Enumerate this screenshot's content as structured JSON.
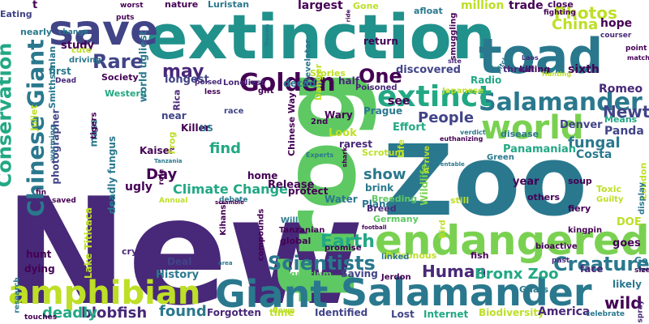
{
  "word_cloud": {
    "words": [
      {
        "text": "New",
        "color": "#482878"
      },
      {
        "text": "frog",
        "color": "#5ec962"
      },
      {
        "text": "Zoo",
        "color": "#2a788e"
      },
      {
        "text": "extinction",
        "color": "#21918c"
      },
      {
        "text": "toad",
        "color": "#2a788e"
      },
      {
        "text": "save",
        "color": "#414487"
      },
      {
        "text": "endangered",
        "color": "#7ad151"
      },
      {
        "text": "Giant",
        "color": "#2a788e"
      },
      {
        "text": "Salamander",
        "color": "#2a788e"
      },
      {
        "text": "Salamander",
        "color": "#2a788e"
      },
      {
        "text": "world",
        "color": "#7ad151"
      },
      {
        "text": "amphibian",
        "color": "#bddf26"
      },
      {
        "text": "extinct",
        "color": "#22a884"
      },
      {
        "text": "Chinese Giant",
        "color": "#2a788e"
      },
      {
        "text": "Conservation",
        "color": "#22a884"
      },
      {
        "text": "Golden",
        "color": "#440154"
      },
      {
        "text": "Scientists",
        "color": "#2a788e"
      },
      {
        "text": "Earth",
        "color": "#22a884"
      },
      {
        "text": "Rare",
        "color": "#414487"
      },
      {
        "text": "Creature",
        "color": "#2a788e"
      },
      {
        "text": "may",
        "color": "#482878"
      },
      {
        "text": "One",
        "color": "#440154"
      },
      {
        "text": "People",
        "color": "#414487"
      },
      {
        "text": "Newt",
        "color": "#414487"
      },
      {
        "text": "Photos",
        "color": "#bddf26"
      },
      {
        "text": "China",
        "color": "#bddf26"
      },
      {
        "text": "Human",
        "color": "#482878"
      },
      {
        "text": "Bronx Zoo",
        "color": "#22a884"
      },
      {
        "text": "wild",
        "color": "#440154"
      },
      {
        "text": "blobfish",
        "color": "#482878"
      },
      {
        "text": "found",
        "color": "#2a788e"
      },
      {
        "text": "deadly",
        "color": "#22a884"
      },
      {
        "text": "Climate Change",
        "color": "#22a884"
      },
      {
        "text": "Day",
        "color": "#440154"
      },
      {
        "text": "find",
        "color": "#22a884"
      },
      {
        "text": "show",
        "color": "#2a788e"
      },
      {
        "text": "Planet",
        "color": "#2a788e"
      },
      {
        "text": "Wildlife",
        "color": "#7ad151"
      },
      {
        "text": "fungal",
        "color": "#2a788e"
      },
      {
        "text": "Panamanian",
        "color": "#22a884"
      },
      {
        "text": "Costa",
        "color": "#2a788e"
      },
      {
        "text": "Panda",
        "color": "#414487"
      },
      {
        "text": "Denver",
        "color": "#414487"
      },
      {
        "text": "Romeo",
        "color": "#482878"
      },
      {
        "text": "sixth",
        "color": "#440154"
      },
      {
        "text": "hope",
        "color": "#440154"
      },
      {
        "text": "largest",
        "color": "#440154"
      },
      {
        "text": "million",
        "color": "#bddf26"
      },
      {
        "text": "trade",
        "color": "#440154"
      },
      {
        "text": "discovered",
        "color": "#414487"
      },
      {
        "text": "see",
        "color": "#440154"
      },
      {
        "text": "Look",
        "color": "#bddf26"
      },
      {
        "text": "Effort",
        "color": "#22a884"
      },
      {
        "text": "rarest",
        "color": "#482878"
      },
      {
        "text": "Killer",
        "color": "#440154"
      },
      {
        "text": "Kaiser",
        "color": "#440154"
      },
      {
        "text": "ugly",
        "color": "#440154"
      },
      {
        "text": "Release",
        "color": "#440154"
      },
      {
        "text": "protect",
        "color": "#440154"
      },
      {
        "text": "home",
        "color": "#440154"
      },
      {
        "text": "Water",
        "color": "#2a788e"
      },
      {
        "text": "brink",
        "color": "#2a788e"
      },
      {
        "text": "Breed",
        "color": "#482878"
      },
      {
        "text": "Breeding",
        "color": "#5ec962"
      },
      {
        "text": "Germany",
        "color": "#5ec962"
      },
      {
        "text": "global",
        "color": "#440154"
      },
      {
        "text": "Poisonous",
        "color": "#bddf26"
      },
      {
        "text": "fish",
        "color": "#440154"
      },
      {
        "text": "Saving",
        "color": "#414487"
      },
      {
        "text": "Aquarium",
        "color": "#5ec962"
      },
      {
        "text": "History",
        "color": "#2a788e"
      },
      {
        "text": "Deal",
        "color": "#414487"
      },
      {
        "text": "hunt",
        "color": "#440154"
      },
      {
        "text": "dying",
        "color": "#440154"
      },
      {
        "text": "Lake Titicaca",
        "color": "#bddf26"
      },
      {
        "text": "Forgotten",
        "color": "#482878"
      },
      {
        "text": "time",
        "color": "#bddf26"
      },
      {
        "text": "Identified",
        "color": "#414487"
      },
      {
        "text": "Lost",
        "color": "#414487"
      },
      {
        "text": "Internet",
        "color": "#22a884"
      },
      {
        "text": "Biodiversity",
        "color": "#bddf26"
      },
      {
        "text": "America",
        "color": "#482878"
      },
      {
        "text": "Eating",
        "color": "#414487"
      },
      {
        "text": "nearly",
        "color": "#2a788e"
      },
      {
        "text": "study",
        "color": "#440154"
      },
      {
        "text": "first",
        "color": "#2a788e"
      },
      {
        "text": "Society",
        "color": "#440154"
      },
      {
        "text": "longest",
        "color": "#414487"
      },
      {
        "text": "decade",
        "color": "#2a788e"
      },
      {
        "text": "half",
        "color": "#482878"
      },
      {
        "text": "Stories",
        "color": "#bddf26"
      },
      {
        "text": "Radio",
        "color": "#22a884"
      },
      {
        "text": "killing",
        "color": "#440154"
      },
      {
        "text": "threat",
        "color": "#482878"
      },
      {
        "text": "Means",
        "color": "#22a884"
      },
      {
        "text": "return",
        "color": "#440154"
      },
      {
        "text": "nature",
        "color": "#440154"
      },
      {
        "text": "Luristan",
        "color": "#2a788e"
      },
      {
        "text": "Gone",
        "color": "#bddf26"
      },
      {
        "text": "afloat",
        "color": "#2a788e"
      },
      {
        "text": "close",
        "color": "#440154"
      },
      {
        "text": "Western",
        "color": "#22a884"
      },
      {
        "text": "world ugliest",
        "color": "#2a788e"
      },
      {
        "text": "Loneliest",
        "color": "#482878"
      },
      {
        "text": "Danger",
        "color": "#bddf26"
      },
      {
        "text": "Revelator",
        "color": "#2a788e"
      },
      {
        "text": "Wary",
        "color": "#440154"
      },
      {
        "text": "Chinese Way",
        "color": "#440154"
      },
      {
        "text": "2nd",
        "color": "#440154"
      },
      {
        "text": "race",
        "color": "#414487"
      },
      {
        "text": "near",
        "color": "#414487"
      },
      {
        "text": "Rica",
        "color": "#482878"
      },
      {
        "text": "US",
        "color": "#2a788e"
      },
      {
        "text": "Frog",
        "color": "#bddf26"
      },
      {
        "text": "photographer",
        "color": "#414487"
      },
      {
        "text": "Smithsonian",
        "color": "#2a788e"
      },
      {
        "text": "Juliet",
        "color": "#bddf26"
      },
      {
        "text": "mass",
        "color": "#2a788e"
      },
      {
        "text": "deadly fungus",
        "color": "#2a788e"
      },
      {
        "text": "cute",
        "color": "#bddf26"
      },
      {
        "text": "driving",
        "color": "#2a788e"
      },
      {
        "text": "tigers",
        "color": "#440154"
      },
      {
        "text": "Prague",
        "color": "#2a788e"
      },
      {
        "text": "Scrotum",
        "color": "#bddf26"
      },
      {
        "text": "Toxic",
        "color": "#bddf26"
      },
      {
        "text": "Guilty",
        "color": "#bddf26"
      },
      {
        "text": "DOE",
        "color": "#bddf26"
      },
      {
        "text": "goes",
        "color": "#440154"
      },
      {
        "text": "face",
        "color": "#482878"
      },
      {
        "text": "likely",
        "color": "#2a788e"
      },
      {
        "text": "Ghats",
        "color": "#2a788e"
      },
      {
        "text": "Japanese",
        "color": "#bddf26"
      },
      {
        "text": "Poisoned",
        "color": "#482878"
      },
      {
        "text": "smuggling",
        "color": "#440154"
      },
      {
        "text": "disease",
        "color": "#2a788e"
      },
      {
        "text": "fiery",
        "color": "#440154"
      },
      {
        "text": "others",
        "color": "#440154"
      },
      {
        "text": "still",
        "color": "#bddf26"
      },
      {
        "text": "year",
        "color": "#440154"
      },
      {
        "text": "soup",
        "color": "#440154"
      },
      {
        "text": "London",
        "color": "#bddf26"
      },
      {
        "text": "display",
        "color": "#2a788e"
      },
      {
        "text": "kingpin",
        "color": "#440154"
      },
      {
        "text": "bioactive",
        "color": "#440154"
      },
      {
        "text": "Green",
        "color": "#2a788e"
      },
      {
        "text": "Bird",
        "color": "#bddf26"
      },
      {
        "text": "Life",
        "color": "#bddf26"
      },
      {
        "text": "Arrive",
        "color": "#bddf26"
      },
      {
        "text": "Tanzanian",
        "color": "#440154"
      },
      {
        "text": "compounds",
        "color": "#440154"
      },
      {
        "text": "Will",
        "color": "#2a788e"
      },
      {
        "text": "promise",
        "color": "#440154"
      },
      {
        "text": "linked",
        "color": "#2a788e"
      },
      {
        "text": "Jerdon",
        "color": "#440154"
      },
      {
        "text": "cryptic",
        "color": "#482878"
      },
      {
        "text": "Kihansi",
        "color": "#440154"
      },
      {
        "text": "debate",
        "color": "#2a788e"
      },
      {
        "text": "gift",
        "color": "#440154"
      },
      {
        "text": "saved",
        "color": "#440154"
      },
      {
        "text": "research",
        "color": "#2a788e"
      },
      {
        "text": "touches",
        "color": "#440154"
      },
      {
        "text": "flown",
        "color": "#bddf26"
      },
      {
        "text": "celebrate",
        "color": "#2a788e"
      },
      {
        "text": "spray",
        "color": "#482878"
      },
      {
        "text": "size",
        "color": "#440154"
      },
      {
        "text": "Go",
        "color": "#2a788e"
      },
      {
        "text": "past",
        "color": "#482878"
      },
      {
        "text": "less",
        "color": "#440154"
      },
      {
        "text": "poised",
        "color": "#482878"
      },
      {
        "text": "role",
        "color": "#440154"
      },
      {
        "text": "Annual",
        "color": "#bddf26"
      },
      {
        "text": "Tanzania",
        "color": "#2a788e"
      },
      {
        "text": "fin",
        "color": "#440154"
      },
      {
        "text": "warming",
        "color": "#2a788e"
      },
      {
        "text": "Dead",
        "color": "#482878"
      },
      {
        "text": "change",
        "color": "#2a788e"
      },
      {
        "text": "puts",
        "color": "#440154"
      },
      {
        "text": "worst",
        "color": "#440154"
      },
      {
        "text": "t",
        "color": "#440154"
      },
      {
        "text": "Travels",
        "color": "#2a788e"
      },
      {
        "text": "site",
        "color": "#482878"
      },
      {
        "text": "Laos",
        "color": "#482878"
      },
      {
        "text": "courser",
        "color": "#482878"
      },
      {
        "text": "point",
        "color": "#440154"
      },
      {
        "text": "match",
        "color": "#440154"
      },
      {
        "text": "fighting",
        "color": "#440154"
      },
      {
        "text": "Hunting",
        "color": "#bddf26"
      },
      {
        "text": "pitch",
        "color": "#2a788e"
      },
      {
        "text": "Experts",
        "color": "#2a788e"
      },
      {
        "text": "shark",
        "color": "#440154"
      },
      {
        "text": "verdict",
        "color": "#2a788e"
      },
      {
        "text": "euthanizing",
        "color": "#440154"
      },
      {
        "text": "preventable",
        "color": "#2a788e"
      },
      {
        "text": "scramble",
        "color": "#440154"
      },
      {
        "text": "area",
        "color": "#2a788e"
      },
      {
        "text": "football",
        "color": "#440154"
      },
      {
        "text": "ride",
        "color": "#440154"
      }
    ]
  }
}
